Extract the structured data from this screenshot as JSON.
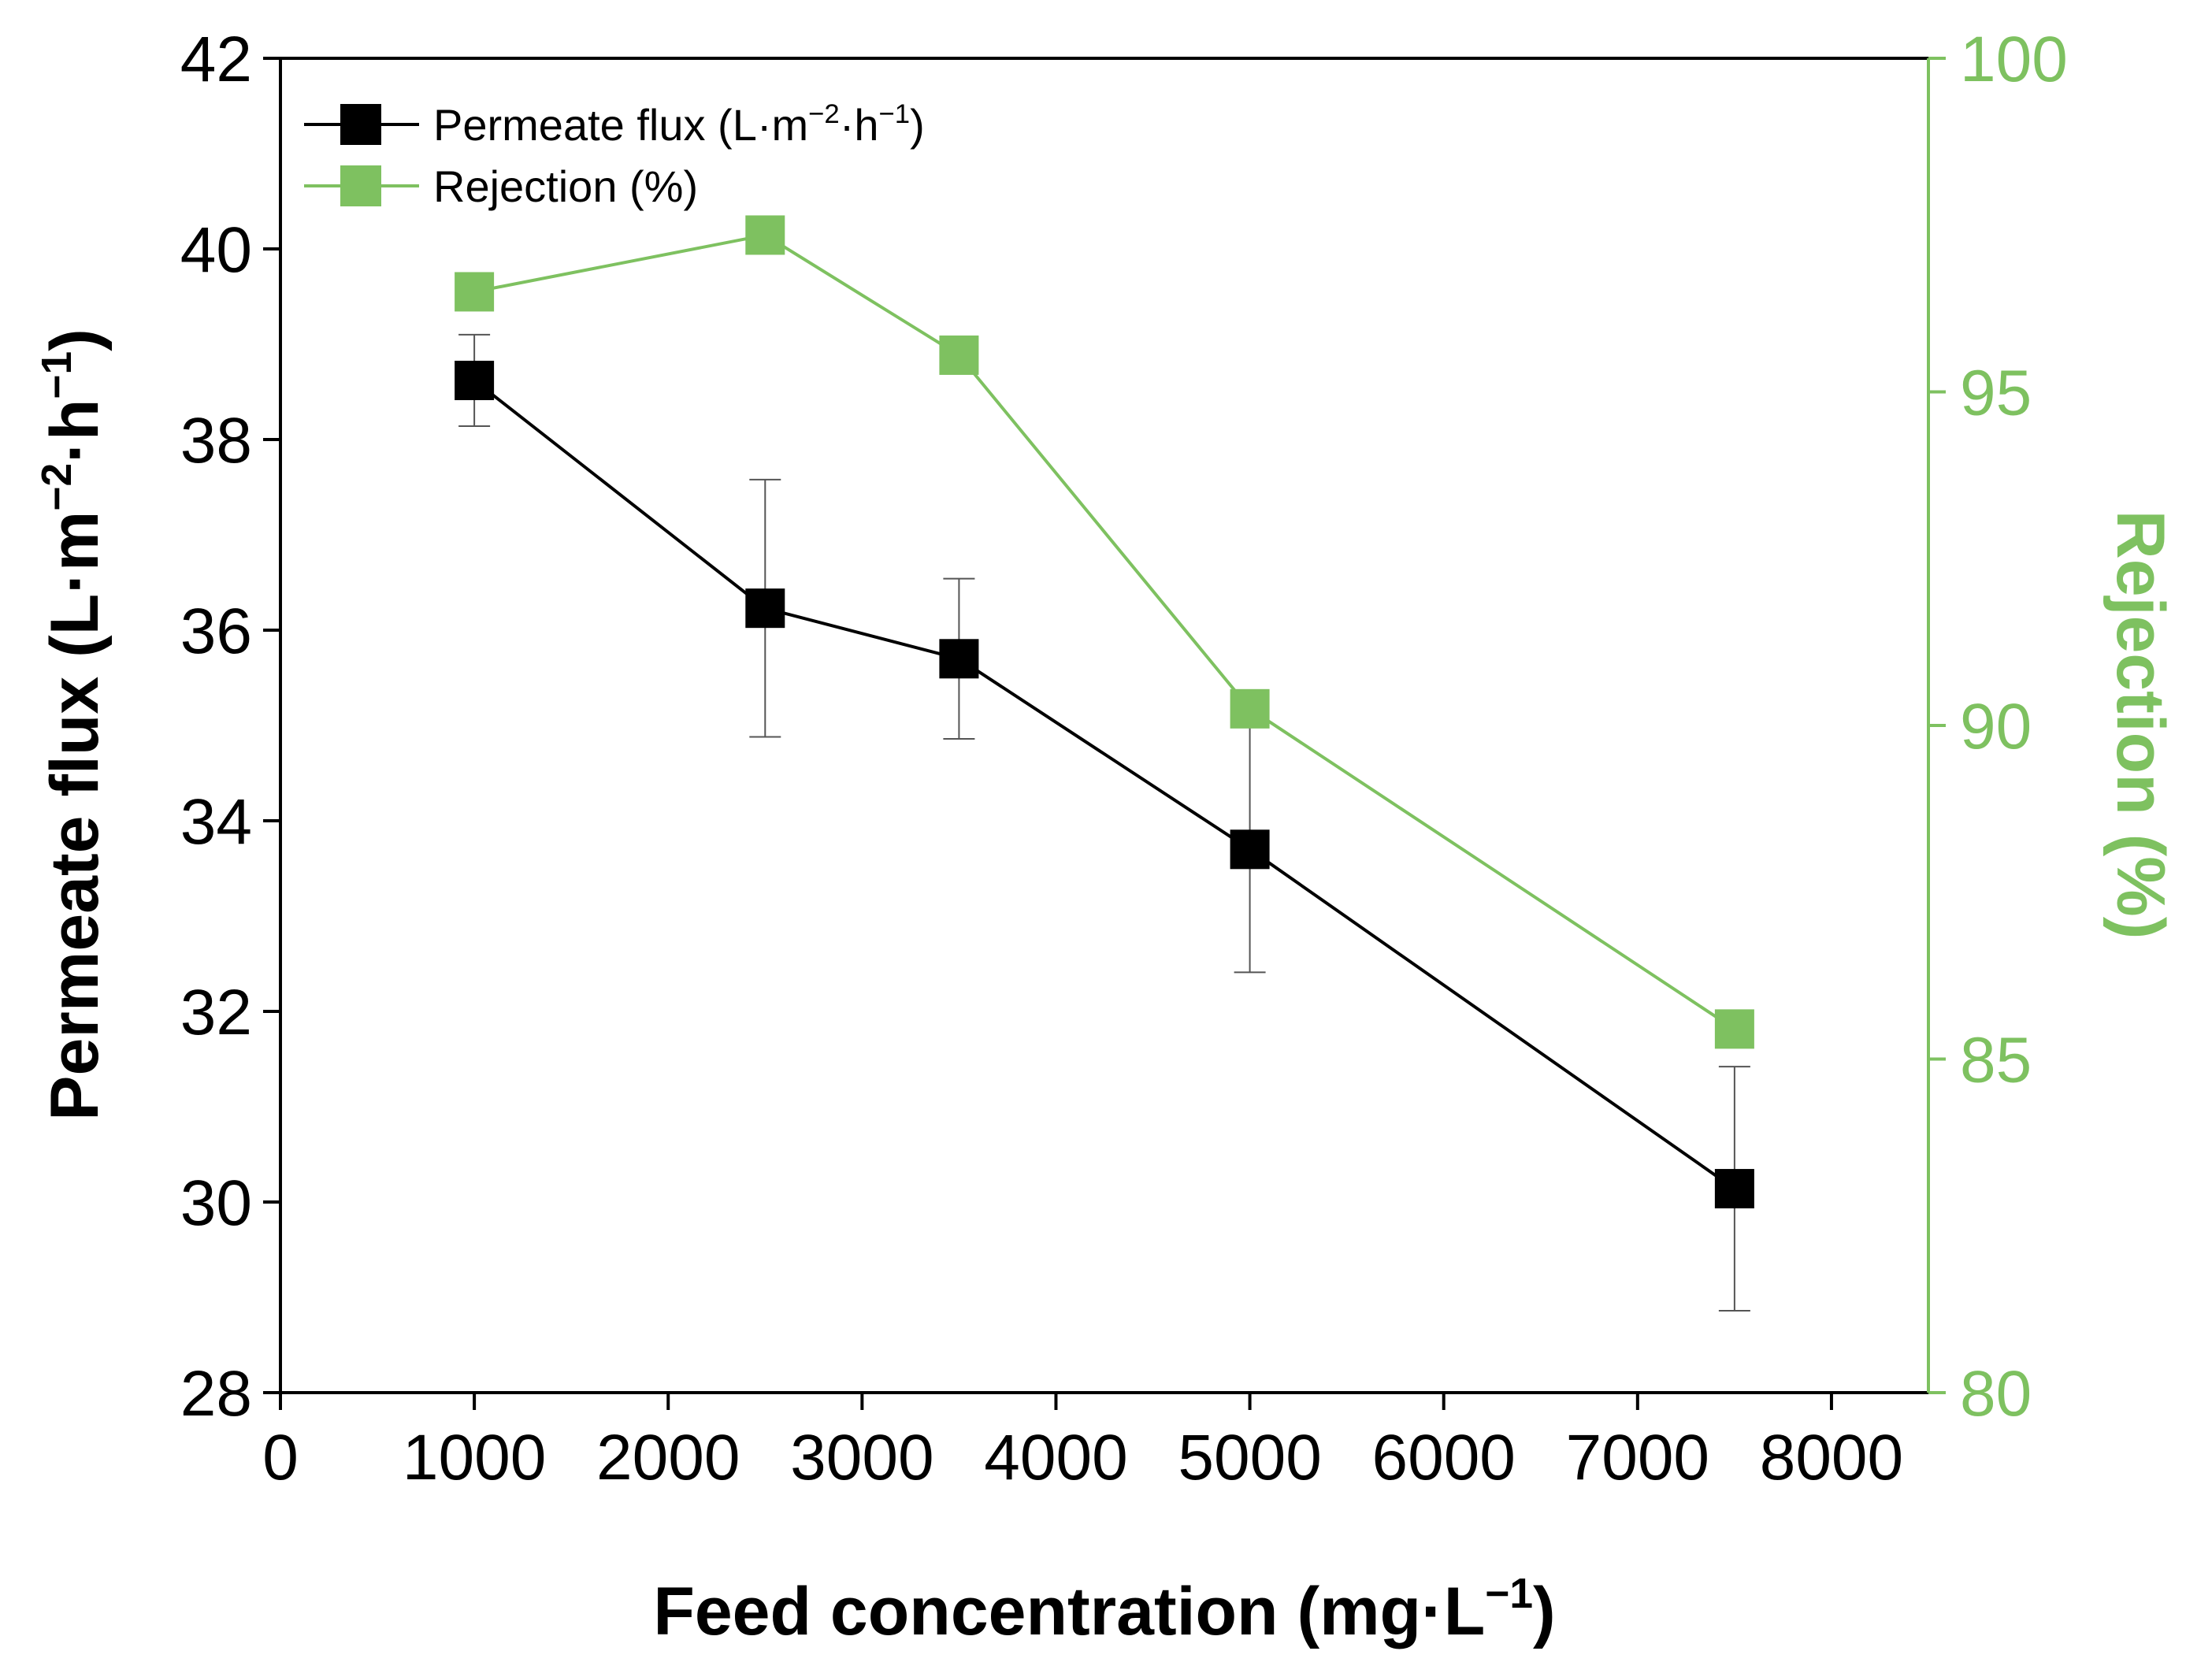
{
  "colors": {
    "flux": "#000000",
    "rejection": "#7ec160",
    "errorbar": "#555555"
  },
  "chart_data": {
    "type": "line",
    "x": [
      1000,
      2500,
      3500,
      5000,
      7500
    ],
    "xlabel": "Feed concentration (mg·L",
    "xlabel_sup": "−1",
    "xlabel_end": ")",
    "xlim": [
      0,
      8500
    ],
    "xticks": [
      0,
      1000,
      2000,
      3000,
      4000,
      5000,
      6000,
      7000,
      8000
    ],
    "ylabel": "Permeate flux (L·m",
    "ylabel_sup1": "−2",
    "ylabel_mid": "·h",
    "ylabel_sup2": "−1",
    "ylabel_end": ")",
    "ylim": [
      28,
      42
    ],
    "yticks": [
      28,
      30,
      32,
      34,
      36,
      38,
      40,
      42
    ],
    "y2label": "Rejection (%)",
    "y2lim": [
      80,
      100
    ],
    "y2ticks": [
      80,
      85,
      90,
      95,
      100
    ],
    "series": [
      {
        "name": "Permeate flux",
        "legend": "Permeate flux (L·m",
        "legend_sup1": "−2",
        "legend_mid": "·h",
        "legend_sup2": "−1",
        "legend_end": ")",
        "axis": "left",
        "values": [
          38.62,
          36.23,
          35.7,
          33.7,
          30.14
        ],
        "errors": [
          0.48,
          1.35,
          0.84,
          1.29,
          1.28
        ]
      },
      {
        "name": "Rejection (%)",
        "legend": "Rejection (%)",
        "axis": "right",
        "values": [
          96.5,
          97.35,
          95.55,
          90.25,
          85.45
        ]
      }
    ]
  }
}
